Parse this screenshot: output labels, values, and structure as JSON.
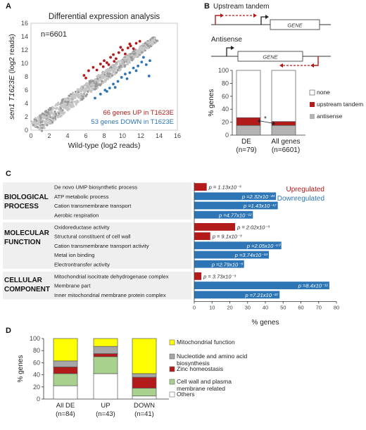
{
  "panels": {
    "a": "A",
    "b": "B",
    "c": "C",
    "d": "D"
  },
  "panelA": {
    "title": "Differential expression analysis",
    "n_label": "n=6601",
    "xlabel": "Wild-type (log2 reads)",
    "ylabel_italic": "sen1 T1623E",
    "ylabel_rest": " (log2 reads)",
    "up_label": "66 genes UP in T1623E",
    "down_label": "53 genes DOWN in T1623E",
    "xticks": [
      "0",
      "2",
      "4",
      "6",
      "8",
      "10",
      "12",
      "14",
      "16"
    ],
    "yticks": [
      "0",
      "2",
      "4",
      "6",
      "8",
      "10",
      "12",
      "14",
      "16"
    ]
  },
  "panelB": {
    "schema_upstream": "Upstream tandem",
    "schema_antisense": "Antisense",
    "gene_label": "GENE",
    "ylabel": "% genes",
    "yticks": [
      "0",
      "20",
      "40",
      "60",
      "80",
      "100"
    ],
    "bars": [
      {
        "name": "DE",
        "n": "(n=79)"
      },
      {
        "name": "All genes",
        "n": "(n=6601)"
      }
    ],
    "star": "*",
    "legend": [
      "none",
      "upstream tandem",
      "antisense"
    ]
  },
  "panelC": {
    "groups": [
      {
        "label_line1": "BIOLOGICAL",
        "label_line2": "PROCESS"
      },
      {
        "label_line1": "MOLECULAR",
        "label_line2": "FUNCTION"
      },
      {
        "label_line1": "CELLULAR",
        "label_line2": "COMPONENT"
      }
    ],
    "legend_up": "Upregulated",
    "legend_down": "Downregulated",
    "xlabel": "% genes",
    "xticks": [
      "0",
      "10",
      "20",
      "30",
      "40",
      "50",
      "60",
      "70",
      "80"
    ]
  },
  "panelD": {
    "ylabel": "% genes",
    "yticks": [
      "0",
      "20",
      "40",
      "60",
      "80",
      "100"
    ],
    "bars": [
      {
        "name": "All DE",
        "n": "(n=84)"
      },
      {
        "name": "UP",
        "n": "(n=43)"
      },
      {
        "name": "DOWN",
        "n": "(n=41)"
      }
    ],
    "legend": [
      {
        "line1": "Mitochondrial function",
        "line2": ""
      },
      {
        "line1": "Nucleotide and amino acid",
        "line2": "biosynthesis"
      },
      {
        "line1": "Zinc homeostasis",
        "line2": ""
      },
      {
        "line1": "Cell wall and plasma",
        "line2": "membrane related"
      },
      {
        "line1": "Others",
        "line2": ""
      }
    ]
  },
  "colors": {
    "red": "#b31b1b",
    "blue": "#2e75b6",
    "grey": "#b3b3b3",
    "yellow": "#ffff00",
    "green": "#a9d18e",
    "dark_grey": "#a6a6a6"
  },
  "chart_data": [
    {
      "type": "scatter",
      "title": "Differential expression analysis",
      "xlabel": "Wild-type (log2 reads)",
      "ylabel": "sen1 T1623E (log2 reads)",
      "xlim": [
        0,
        16
      ],
      "ylim": [
        0,
        16
      ],
      "series": [
        {
          "name": "66 genes UP in T1623E",
          "color": "#b31b1b",
          "points": [
            [
              5.8,
              8.2
            ],
            [
              6.3,
              8.9
            ],
            [
              6.8,
              9.4
            ],
            [
              7.2,
              9.0
            ],
            [
              7.6,
              9.9
            ],
            [
              8.0,
              10.4
            ],
            [
              8.3,
              10.1
            ],
            [
              8.7,
              10.9
            ],
            [
              9.0,
              11.3
            ],
            [
              9.3,
              10.7
            ],
            [
              9.6,
              11.6
            ],
            [
              10.0,
              12.0
            ],
            [
              10.3,
              11.4
            ],
            [
              10.6,
              12.3
            ],
            [
              10.9,
              12.6
            ],
            [
              11.2,
              12.2
            ],
            [
              11.5,
              13.0
            ],
            [
              7.9,
              9.5
            ],
            [
              8.5,
              9.8
            ],
            [
              9.8,
              12.4
            ],
            [
              11.9,
              13.3
            ],
            [
              6.0,
              7.8
            ],
            [
              10.8,
              12.9
            ],
            [
              9.1,
              10.3
            ]
          ]
        },
        {
          "name": "53 genes DOWN in T1623E",
          "color": "#2e75b6",
          "points": [
            [
              7.0,
              4.8
            ],
            [
              7.6,
              5.4
            ],
            [
              8.1,
              6.0
            ],
            [
              8.6,
              6.3
            ],
            [
              9.0,
              6.9
            ],
            [
              9.5,
              7.3
            ],
            [
              9.9,
              7.9
            ],
            [
              10.3,
              8.4
            ],
            [
              10.8,
              8.6
            ],
            [
              11.2,
              9.3
            ],
            [
              11.7,
              9.6
            ],
            [
              12.1,
              10.2
            ],
            [
              12.6,
              9.8
            ],
            [
              12.9,
              8.1
            ],
            [
              10.5,
              7.7
            ],
            [
              9.2,
              6.4
            ],
            [
              11.5,
              8.9
            ],
            [
              8.3,
              5.8
            ],
            [
              12.3,
              10.9
            ],
            [
              13.0,
              10.4
            ]
          ]
        }
      ]
    },
    {
      "type": "bar",
      "stacked": true,
      "ylabel": "% genes",
      "categories": [
        "DE (n=79)",
        "All genes (n=6601)"
      ],
      "ylim": [
        0,
        100
      ],
      "series": [
        {
          "name": "antisense",
          "color": "#b3b3b3",
          "values": [
            15,
            15
          ]
        },
        {
          "name": "upstream tandem",
          "color": "#b31b1b",
          "values": [
            12,
            6
          ]
        },
        {
          "name": "none",
          "color": "#ffffff",
          "values": [
            73,
            79
          ]
        }
      ]
    },
    {
      "type": "bar",
      "orientation": "horizontal",
      "xlabel": "% genes",
      "xlim": [
        0,
        80
      ],
      "series_names": [
        "Upregulated",
        "Downregulated"
      ],
      "rows": [
        {
          "group": "BIOLOGICAL PROCESS",
          "term": "De novo UMP biosynthetic process",
          "value": 7,
          "direction": "up",
          "p": "p = 1.13x10⁻³"
        },
        {
          "group": "BIOLOGICAL PROCESS",
          "term": "ATP metabolic process",
          "value": 46,
          "direction": "down",
          "p": "p =2.32x10⁻²³"
        },
        {
          "group": "BIOLOGICAL PROCESS",
          "term": "Cation transmembrane transport",
          "value": 47,
          "direction": "down",
          "p": "p =1.43x10⁻¹⁷"
        },
        {
          "group": "BIOLOGICAL PROCESS",
          "term": "Aerobic respiration",
          "value": 33,
          "direction": "down",
          "p": "p =4.77x10⁻¹²"
        },
        {
          "group": "MOLECULAR FUNCTION",
          "term": "Oxidoreductase activity",
          "value": 23,
          "direction": "up",
          "p": "p = 2.02x10⁻³"
        },
        {
          "group": "MOLECULAR FUNCTION",
          "term": "Structural constituent of cell wall",
          "value": 9,
          "direction": "up",
          "p": "p = 9.1x10⁻³"
        },
        {
          "group": "MOLECULAR FUNCTION",
          "term": "Cation transmembrane transport activity",
          "value": 49,
          "direction": "down",
          "p": "p =2.05x10⁻¹⁰"
        },
        {
          "group": "MOLECULAR FUNCTION",
          "term": "Metal ion binding",
          "value": 42,
          "direction": "down",
          "p": "p =3.74x10⁻¹³"
        },
        {
          "group": "MOLECULAR FUNCTION",
          "term": "Electrontransfer activity",
          "value": 28,
          "direction": "down",
          "p": "p =2.79x10⁻³"
        },
        {
          "group": "CELLULAR COMPONENT",
          "term": "Mitochondrial isocitrate dehydrogenase complex",
          "value": 4,
          "direction": "up",
          "p": "p = 3.73x10⁻³"
        },
        {
          "group": "CELLULAR COMPONENT",
          "term": "Membrane part",
          "value": 76,
          "direction": "down",
          "p": "p =8.4x10⁻¹¹"
        },
        {
          "group": "CELLULAR COMPONENT",
          "term": "Inner mitochondrial membrane protein complex",
          "value": 48,
          "direction": "down",
          "p": "p =7.21x10⁻²⁷"
        }
      ]
    },
    {
      "type": "bar",
      "stacked": true,
      "ylabel": "% genes",
      "categories": [
        "All DE (n=84)",
        "UP (n=43)",
        "DOWN (n=41)"
      ],
      "ylim": [
        0,
        100
      ],
      "series": [
        {
          "name": "Others",
          "color": "#ffffff",
          "values": [
            22,
            42,
            5
          ]
        },
        {
          "name": "Cell wall and plasma membrane related",
          "color": "#a9d18e",
          "values": [
            20,
            28,
            13
          ]
        },
        {
          "name": "Zinc homeostasis",
          "color": "#b31b1b",
          "values": [
            11,
            5,
            18
          ]
        },
        {
          "name": "Nucleotide and amino acid biosynthesis",
          "color": "#a6a6a6",
          "values": [
            10,
            12,
            6
          ]
        },
        {
          "name": "Mitochondrial function",
          "color": "#ffff00",
          "values": [
            37,
            13,
            58
          ]
        }
      ]
    }
  ]
}
